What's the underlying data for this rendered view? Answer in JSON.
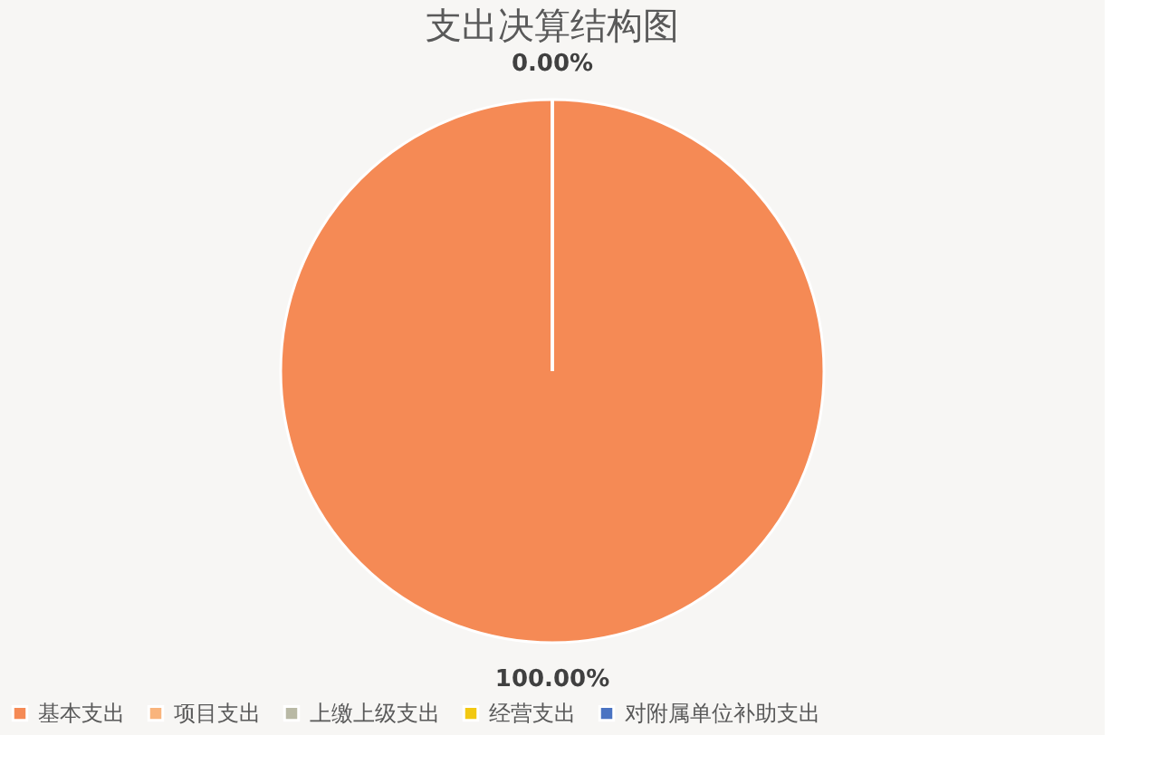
{
  "chart_data": {
    "type": "pie",
    "title": "支出决算结构图",
    "categories": [
      "基本支出",
      "项目支出",
      "上缴上级支出",
      "经营支出",
      "对附属单位补助支出"
    ],
    "values": [
      100,
      0,
      0,
      0,
      0
    ],
    "colors": [
      "#f58a55",
      "#f9b47c",
      "#b9b9a5",
      "#f2c811",
      "#4a73c2"
    ],
    "value_labels": [
      "100.00%",
      "0.00%",
      null,
      null,
      null
    ],
    "legend": "bottom"
  }
}
